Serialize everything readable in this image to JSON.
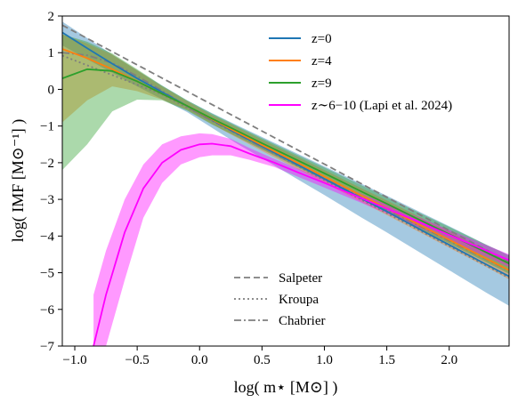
{
  "chart_data": {
    "type": "line",
    "title": "",
    "xlabel": "log( m⋆ [M⊙] )",
    "ylabel": "log( IMF  [M⊙⁻¹] )",
    "xlim": [
      -1.1,
      2.48
    ],
    "ylim": [
      -7,
      2
    ],
    "xticks": [
      -1.0,
      -0.5,
      0.0,
      0.5,
      1.0,
      1.5,
      2.0
    ],
    "xtick_labels": [
      "−1.0",
      "−0.5",
      "0.0",
      "0.5",
      "1.0",
      "1.5",
      "2.0"
    ],
    "yticks": [
      -7,
      -6,
      -5,
      -4,
      -3,
      -2,
      -1,
      0,
      1,
      2
    ],
    "ytick_labels": [
      "−7",
      "−6",
      "−5",
      "−4",
      "−3",
      "−2",
      "−1",
      "0",
      "1",
      "2"
    ],
    "grid": false,
    "legend_placement": "top-right",
    "series": [
      {
        "name": "z=0",
        "color": "#1f77b4",
        "x": [
          -1.1,
          -0.9,
          -0.7,
          -0.5,
          -0.3,
          -0.1,
          0.1,
          0.3,
          0.5,
          0.8,
          1.0,
          1.3,
          1.5,
          1.8,
          2.0,
          2.3,
          2.48
        ],
        "y": [
          1.55,
          1.12,
          0.7,
          0.3,
          -0.08,
          -0.45,
          -0.83,
          -1.2,
          -1.55,
          -2.08,
          -2.44,
          -2.98,
          -3.33,
          -3.88,
          -4.24,
          -4.78,
          -5.1
        ],
        "band_upper": [
          1.85,
          1.4,
          0.95,
          0.52,
          0.1,
          -0.3,
          -0.65,
          -0.98,
          -1.3,
          -1.78,
          -2.1,
          -2.58,
          -2.9,
          -3.4,
          -3.73,
          -4.24,
          -4.52
        ],
        "band_lower": [
          1.2,
          0.82,
          0.45,
          0.08,
          -0.27,
          -0.62,
          -1.05,
          -1.48,
          -1.88,
          -2.48,
          -2.88,
          -3.5,
          -3.9,
          -4.52,
          -4.93,
          -5.55,
          -5.9
        ]
      },
      {
        "name": "z=4",
        "color": "#ff7f0e",
        "x": [
          -1.1,
          -0.9,
          -0.7,
          -0.5,
          -0.3,
          -0.1,
          0.1,
          0.3,
          0.5,
          0.8,
          1.0,
          1.3,
          1.5,
          1.8,
          2.0,
          2.3,
          2.48
        ],
        "y": [
          1.1,
          0.85,
          0.55,
          0.22,
          -0.12,
          -0.45,
          -0.82,
          -1.17,
          -1.52,
          -2.03,
          -2.38,
          -2.9,
          -3.24,
          -3.76,
          -4.1,
          -4.62,
          -4.93
        ],
        "band_upper": [
          1.5,
          1.25,
          0.95,
          0.52,
          0.08,
          -0.32,
          -0.7,
          -1.03,
          -1.37,
          -1.86,
          -2.2,
          -2.7,
          -3.03,
          -3.54,
          -3.87,
          -4.37,
          -4.68
        ],
        "band_lower": [
          -0.9,
          -0.3,
          0.08,
          -0.05,
          -0.28,
          -0.56,
          -0.95,
          -1.32,
          -1.68,
          -2.2,
          -2.55,
          -3.08,
          -3.43,
          -3.96,
          -4.32,
          -4.85,
          -5.18
        ]
      },
      {
        "name": "z=9",
        "color": "#2ca02c",
        "x": [
          -1.1,
          -0.9,
          -0.7,
          -0.5,
          -0.3,
          -0.1,
          0.1,
          0.3,
          0.5,
          0.8,
          1.0,
          1.3,
          1.5,
          1.8,
          2.0,
          2.3,
          2.48
        ],
        "y": [
          0.3,
          0.55,
          0.5,
          0.22,
          -0.12,
          -0.45,
          -0.8,
          -1.13,
          -1.47,
          -1.96,
          -2.29,
          -2.79,
          -3.12,
          -3.62,
          -3.95,
          -4.45,
          -4.75
        ],
        "band_upper": [
          1.5,
          1.3,
          0.98,
          0.55,
          0.1,
          -0.3,
          -0.66,
          -1.0,
          -1.33,
          -1.81,
          -2.13,
          -2.62,
          -2.94,
          -3.43,
          -3.75,
          -4.24,
          -4.53
        ],
        "band_lower": [
          -2.2,
          -1.5,
          -0.6,
          -0.28,
          -0.3,
          -0.58,
          -0.96,
          -1.3,
          -1.64,
          -2.14,
          -2.48,
          -3.0,
          -3.34,
          -3.86,
          -4.2,
          -4.72,
          -5.03
        ]
      },
      {
        "name": "z∼6−10 (Lapi et al. 2024)",
        "color": "#ff00ff",
        "x": [
          -0.85,
          -0.75,
          -0.6,
          -0.45,
          -0.3,
          -0.15,
          0.0,
          0.1,
          0.25,
          0.4,
          0.6,
          0.8,
          1.0,
          1.3,
          1.5,
          1.8,
          2.0,
          2.3,
          2.48
        ],
        "y": [
          -7.0,
          -5.6,
          -3.9,
          -2.7,
          -2.0,
          -1.65,
          -1.5,
          -1.48,
          -1.55,
          -1.75,
          -2.0,
          -2.28,
          -2.55,
          -2.97,
          -3.25,
          -3.68,
          -3.97,
          -4.4,
          -4.66
        ],
        "band_upper": [
          -5.6,
          -4.4,
          -3.0,
          -2.05,
          -1.5,
          -1.28,
          -1.2,
          -1.22,
          -1.35,
          -1.6,
          -1.9,
          -2.18,
          -2.45,
          -2.86,
          -3.13,
          -3.55,
          -3.83,
          -4.25,
          -4.5
        ],
        "band_lower": [
          -7.0,
          -7.0,
          -5.2,
          -3.5,
          -2.55,
          -2.05,
          -1.85,
          -1.8,
          -1.8,
          -1.92,
          -2.12,
          -2.4,
          -2.68,
          -3.1,
          -3.39,
          -3.83,
          -4.12,
          -4.57,
          -4.84
        ]
      }
    ],
    "reference_series": [
      {
        "name": "Salpeter",
        "style": "dashed",
        "x": [
          -1.1,
          2.48
        ],
        "y": [
          1.75,
          -4.71
        ]
      },
      {
        "name": "Kroupa",
        "style": "dotted",
        "x": [
          -1.1,
          -0.3,
          2.48
        ],
        "y": [
          0.92,
          -0.14,
          -5.14
        ]
      },
      {
        "name": "Chabrier",
        "style": "dashdot",
        "x": [
          -1.1,
          -0.9,
          -0.7,
          -0.5,
          -0.3,
          -0.1,
          0.0,
          0.5,
          1.0,
          1.5,
          2.0,
          2.48
        ],
        "y": [
          1.0,
          0.93,
          0.72,
          0.36,
          -0.04,
          -0.47,
          -0.68,
          -1.58,
          -2.43,
          -3.28,
          -4.13,
          -4.94
        ]
      }
    ],
    "reference_color": "#7f7f7f"
  }
}
